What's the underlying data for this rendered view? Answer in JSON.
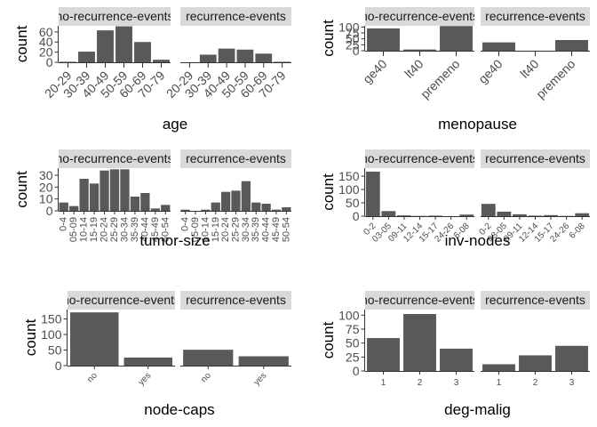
{
  "colors": {
    "bar": "#595959",
    "strip": "#d9d9d9",
    "axis": "#333333",
    "tick_text": "#4d4d4d"
  },
  "facet_labels": [
    "no-recurrence-events",
    "recurrence-events"
  ],
  "y_label": "count",
  "chart_data": [
    {
      "type": "bar",
      "xlabel": "age",
      "ylabel": "count",
      "grid": false,
      "categories": [
        "20-29",
        "30-39",
        "40-49",
        "50-59",
        "60-69",
        "70-79"
      ],
      "ylim": [
        0,
        72
      ],
      "yticks": [
        0,
        20,
        40,
        60
      ],
      "series": [
        {
          "name": "no-recurrence-events",
          "values": [
            1,
            21,
            63,
            71,
            40,
            5
          ]
        },
        {
          "name": "recurrence-events",
          "values": [
            0,
            15,
            27,
            25,
            17,
            1
          ]
        }
      ]
    },
    {
      "type": "bar",
      "xlabel": "menopause",
      "ylabel": "count",
      "grid": false,
      "categories": [
        "ge40",
        "lt40",
        "premeno"
      ],
      "ylim": [
        0,
        105
      ],
      "yticks": [
        0,
        25,
        50,
        75,
        100
      ],
      "series": [
        {
          "name": "no-recurrence-events",
          "values": [
            94,
            5,
            104
          ]
        },
        {
          "name": "recurrence-events",
          "values": [
            35,
            0,
            45
          ]
        }
      ]
    },
    {
      "type": "bar",
      "xlabel": "tumor-size",
      "ylabel": "count",
      "grid": false,
      "categories": [
        "0-4",
        "05-09",
        "10-14",
        "15-19",
        "20-24",
        "25-29",
        "30-34",
        "35-39",
        "40-44",
        "45-49",
        "50-54"
      ],
      "ylim": [
        0,
        36
      ],
      "yticks": [
        0,
        10,
        20,
        30
      ],
      "series": [
        {
          "name": "no-recurrence-events",
          "values": [
            7,
            4,
            27,
            23,
            34,
            35,
            35,
            12,
            15,
            2,
            5
          ]
        },
        {
          "name": "recurrence-events",
          "values": [
            1,
            0,
            1,
            7,
            16,
            17,
            25,
            7,
            6,
            1,
            3
          ]
        }
      ]
    },
    {
      "type": "bar",
      "xlabel": "inv-nodes",
      "ylabel": "count",
      "grid": false,
      "categories": [
        "0-2",
        "03-05",
        "09-11",
        "12-14",
        "15-17",
        "24-26",
        "6-08"
      ],
      "ylim": [
        0,
        180
      ],
      "yticks": [
        0,
        50,
        100,
        150
      ],
      "series": [
        {
          "name": "no-recurrence-events",
          "values": [
            167,
            19,
            3,
            1,
            2,
            0,
            6
          ]
        },
        {
          "name": "recurrence-events",
          "values": [
            46,
            17,
            7,
            2,
            4,
            1,
            11
          ]
        }
      ]
    },
    {
      "type": "bar",
      "xlabel": "node-caps",
      "ylabel": "count",
      "grid": false,
      "categories": [
        "no",
        "yes"
      ],
      "ylim": [
        0,
        180
      ],
      "yticks": [
        0,
        50,
        100,
        150
      ],
      "series": [
        {
          "name": "no-recurrence-events",
          "values": [
            171,
            26
          ]
        },
        {
          "name": "recurrence-events",
          "values": [
            51,
            30
          ]
        }
      ]
    },
    {
      "type": "bar",
      "xlabel": "deg-malig",
      "ylabel": "count",
      "grid": false,
      "categories": [
        "1",
        "2",
        "3"
      ],
      "ylim": [
        0,
        110
      ],
      "yticks": [
        0,
        25,
        50,
        75,
        100
      ],
      "series": [
        {
          "name": "no-recurrence-events",
          "values": [
            59,
            102,
            40
          ]
        },
        {
          "name": "recurrence-events",
          "values": [
            12,
            28,
            45
          ]
        }
      ]
    }
  ]
}
